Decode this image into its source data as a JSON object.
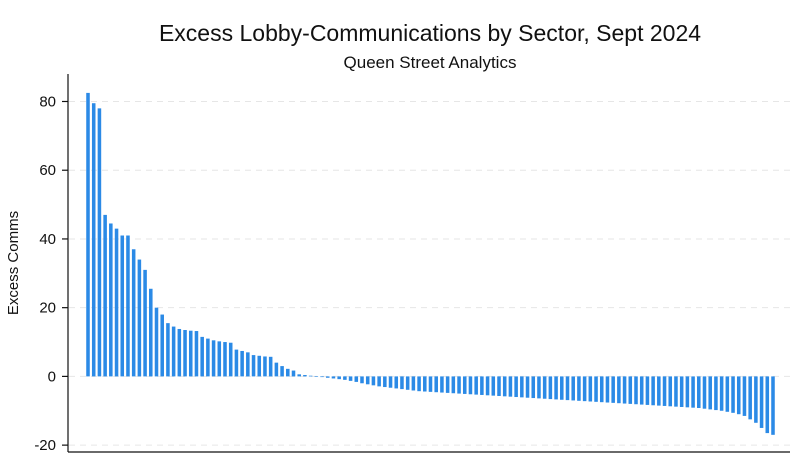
{
  "chart_data": {
    "type": "bar",
    "title": "Excess Lobby-Communications by Sector, Sept 2024",
    "subtitle": "Queen Street Analytics",
    "xlabel": "",
    "ylabel": "Excess Comms",
    "ylim": [
      -22,
      88
    ],
    "yticks": [
      -20,
      0,
      20,
      40,
      60,
      80
    ],
    "grid": true,
    "bar_color": "#2b8ae6",
    "values": [
      82.5,
      79.5,
      78.0,
      47.0,
      44.5,
      43.0,
      41.0,
      41.0,
      37.0,
      34.0,
      31.0,
      25.5,
      20.0,
      18.0,
      15.5,
      14.5,
      13.8,
      13.5,
      13.3,
      13.2,
      11.5,
      11.0,
      10.5,
      10.2,
      10.0,
      9.8,
      7.8,
      7.4,
      7.0,
      6.2,
      6.0,
      5.8,
      5.7,
      4.0,
      3.0,
      2.2,
      1.7,
      0.6,
      0.4,
      0.2,
      0.0,
      -0.2,
      -0.4,
      -0.6,
      -0.8,
      -1.0,
      -1.3,
      -1.6,
      -2.0,
      -2.3,
      -2.6,
      -2.9,
      -3.1,
      -3.3,
      -3.5,
      -3.7,
      -3.9,
      -4.1,
      -4.3,
      -4.4,
      -4.5,
      -4.6,
      -4.7,
      -4.8,
      -4.9,
      -5.0,
      -5.1,
      -5.2,
      -5.3,
      -5.4,
      -5.5,
      -5.6,
      -5.7,
      -5.8,
      -5.9,
      -6.0,
      -6.1,
      -6.2,
      -6.3,
      -6.4,
      -6.5,
      -6.6,
      -6.7,
      -6.8,
      -6.9,
      -7.0,
      -7.1,
      -7.2,
      -7.3,
      -7.4,
      -7.5,
      -7.6,
      -7.7,
      -7.8,
      -7.9,
      -8.0,
      -8.1,
      -8.2,
      -8.3,
      -8.4,
      -8.5,
      -8.6,
      -8.7,
      -8.8,
      -8.9,
      -9.0,
      -9.1,
      -9.2,
      -9.4,
      -9.6,
      -9.8,
      -10.0,
      -10.3,
      -10.6,
      -11.0,
      -11.5,
      -12.5,
      -13.5,
      -15.0,
      -16.5,
      -17.0
    ]
  }
}
